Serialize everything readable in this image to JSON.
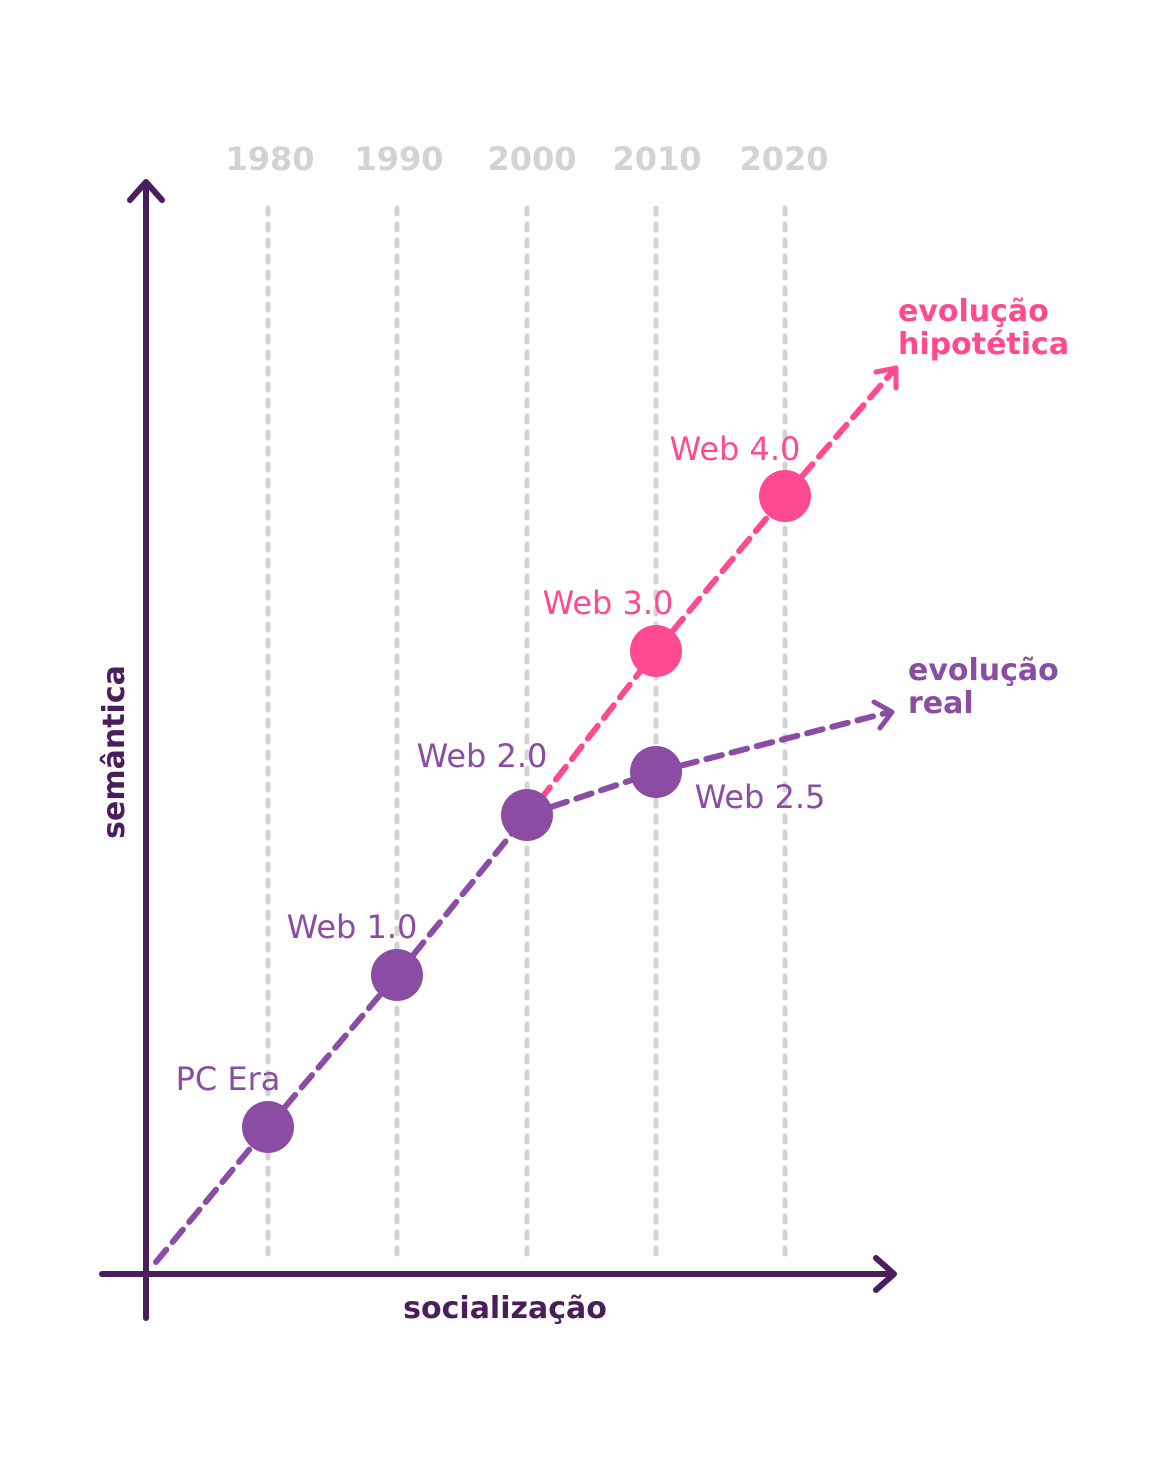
{
  "axes": {
    "x_label": "socialização",
    "y_label": "semântica"
  },
  "years": [
    "1980",
    "1990",
    "2000",
    "2010",
    "2020"
  ],
  "nodes": [
    {
      "id": "pc-era",
      "label": "PC Era",
      "color": "#8b4ca3"
    },
    {
      "id": "web-1",
      "label": "Web 1.0",
      "color": "#8b4ca3"
    },
    {
      "id": "web-2",
      "label": "Web 2.0",
      "color": "#8b4ca3"
    },
    {
      "id": "web-25",
      "label": "Web 2.5",
      "color": "#8b4ca3"
    },
    {
      "id": "web-3",
      "label": "Web 3.0",
      "color": "#ff4a91"
    },
    {
      "id": "web-4",
      "label": "Web 4.0",
      "color": "#ff4a91"
    }
  ],
  "paths": {
    "real": {
      "label_line1": "evolução",
      "label_line2": "real",
      "color": "#8b4ca3"
    },
    "hypothetical": {
      "label_line1": "evolução",
      "label_line2": "hipotética",
      "color": "#ff4a91"
    }
  },
  "colors": {
    "axis": "#4a1d5c",
    "gridline": "#d3d3d3",
    "real": "#8b4ca3",
    "hypothetical": "#ff4a91"
  }
}
